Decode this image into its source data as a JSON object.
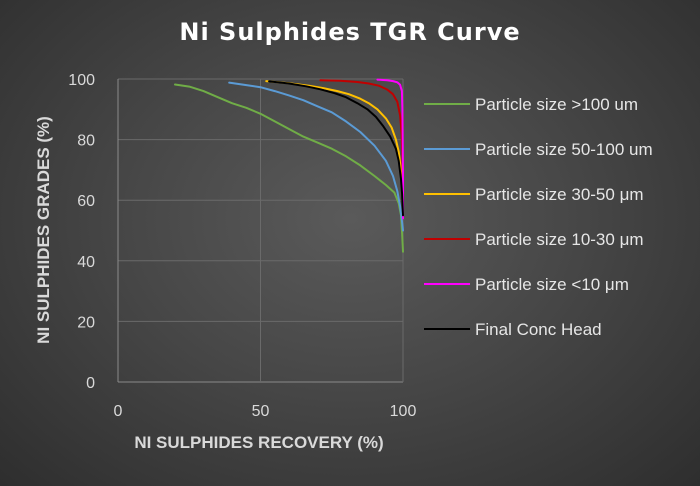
{
  "chart_data": {
    "type": "line",
    "title": "Ni Sulphides TGR Curve",
    "xlabel": "NI SULPHIDES RECOVERY (%)",
    "ylabel": "NI SULPHIDES GRADES (%)",
    "xlim": [
      0,
      100
    ],
    "ylim": [
      0,
      100
    ],
    "xticks": [
      "0",
      "50",
      "100"
    ],
    "yticks": [
      "0",
      "20",
      "40",
      "60",
      "80",
      "100"
    ],
    "grid": "horizontal and vertical major",
    "legend_position": "right",
    "series": [
      {
        "name": "Particle size >100 um",
        "color": "#70ad47",
        "points": [
          [
            20,
            98.2
          ],
          [
            25,
            97.5
          ],
          [
            30,
            96
          ],
          [
            35,
            94
          ],
          [
            40,
            92
          ],
          [
            45,
            90.5
          ],
          [
            50,
            88.5
          ],
          [
            55,
            86
          ],
          [
            60,
            83.5
          ],
          [
            65,
            81
          ],
          [
            70,
            79
          ],
          [
            75,
            77
          ],
          [
            80,
            74.5
          ],
          [
            85,
            71.5
          ],
          [
            90,
            68
          ],
          [
            94,
            65
          ],
          [
            97,
            62.5
          ],
          [
            98.5,
            59
          ],
          [
            99.3,
            55
          ],
          [
            99.7,
            49
          ],
          [
            100,
            43
          ]
        ]
      },
      {
        "name": "Particle size 50-100 um",
        "color": "#5b9bd5",
        "points": [
          [
            39,
            98.8
          ],
          [
            45,
            98
          ],
          [
            50,
            97.3
          ],
          [
            55,
            96
          ],
          [
            60,
            94.6
          ],
          [
            65,
            93
          ],
          [
            70,
            91
          ],
          [
            75,
            89
          ],
          [
            80,
            86
          ],
          [
            85,
            82.5
          ],
          [
            90,
            78
          ],
          [
            94,
            73
          ],
          [
            96.5,
            68
          ],
          [
            98,
            63
          ],
          [
            99,
            58
          ],
          [
            99.5,
            54
          ],
          [
            99.8,
            52
          ],
          [
            100,
            50
          ]
        ]
      },
      {
        "name": "Particle size 30-50 μm",
        "color": "#ffc000",
        "points": [
          [
            52,
            99.3
          ],
          [
            60,
            98.6
          ],
          [
            67,
            97.8
          ],
          [
            72,
            97
          ],
          [
            77,
            96
          ],
          [
            81,
            95
          ],
          [
            85,
            93.5
          ],
          [
            88,
            92
          ],
          [
            91,
            90
          ],
          [
            94,
            87
          ],
          [
            96,
            84
          ],
          [
            97.5,
            80
          ],
          [
            98.5,
            76
          ],
          [
            99.3,
            70
          ],
          [
            99.7,
            64
          ],
          [
            100,
            58
          ]
        ]
      },
      {
        "name": "Particle size 10-30 μm",
        "color": "#c00000",
        "points": [
          [
            71,
            99.6
          ],
          [
            78,
            99.4
          ],
          [
            84,
            99
          ],
          [
            88,
            98.5
          ],
          [
            91.5,
            97.8
          ],
          [
            94.5,
            96.5
          ],
          [
            96.5,
            95
          ],
          [
            98,
            92.5
          ],
          [
            99,
            88
          ],
          [
            99.5,
            82
          ],
          [
            99.8,
            74
          ],
          [
            100,
            65
          ]
        ]
      },
      {
        "name": "Particle size <10 μm",
        "color": "#ff00ff",
        "points": [
          [
            91,
            99.8
          ],
          [
            94.5,
            99.6
          ],
          [
            96.5,
            99.3
          ],
          [
            98,
            98.9
          ],
          [
            99,
            98.1
          ],
          [
            99.6,
            96
          ],
          [
            99.8,
            90
          ],
          [
            99.9,
            80
          ],
          [
            100,
            68
          ],
          [
            100,
            54
          ]
        ]
      },
      {
        "name": "Final Conc Head",
        "color": "#000000",
        "points": [
          [
            53,
            99.2
          ],
          [
            60,
            98.5
          ],
          [
            66,
            97.6
          ],
          [
            71,
            96.6
          ],
          [
            76,
            95.3
          ],
          [
            80,
            94
          ],
          [
            84,
            92
          ],
          [
            87.5,
            90
          ],
          [
            90.5,
            87.5
          ],
          [
            93,
            84.5
          ],
          [
            95.5,
            81
          ],
          [
            97.5,
            77
          ],
          [
            98.5,
            73
          ],
          [
            99.3,
            67
          ],
          [
            99.7,
            62
          ],
          [
            100,
            55
          ]
        ]
      }
    ]
  }
}
